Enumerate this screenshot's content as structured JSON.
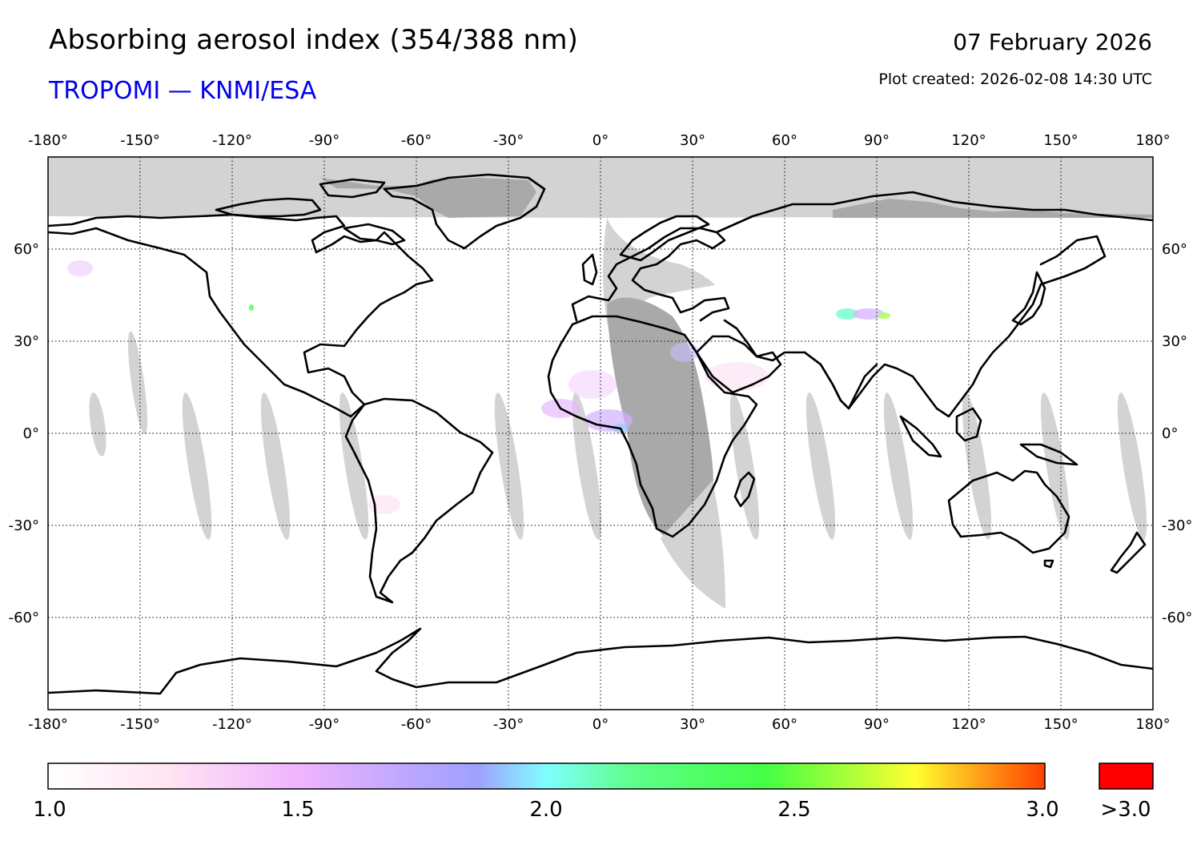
{
  "header": {
    "title": "Absorbing aerosol index (354/388 nm)",
    "subtitle": "TROPOMI — KNMI/ESA",
    "date": "07 February 2026",
    "created": "Plot created: 2026-02-08 14:30 UTC"
  },
  "colors": {
    "subtitle": "#0000ee",
    "no_data": "#d3d3d3",
    "no_data_dark": "#a9a9a9",
    "over_range": "#ff0000",
    "colormap": [
      "#ffffff",
      "#ffd6f0",
      "#e8a6ff",
      "#a0a0ff",
      "#80ffff",
      "#40ff40",
      "#ffff30",
      "#ff4000"
    ]
  },
  "map": {
    "projection": "equirectangular",
    "lon_range": [
      -180,
      180
    ],
    "lat_range": [
      -90,
      90
    ],
    "lon_ticks": [
      "-180°",
      "-150°",
      "-120°",
      "-90°",
      "-60°",
      "-30°",
      "0°",
      "30°",
      "60°",
      "90°",
      "120°",
      "150°",
      "180°"
    ],
    "lat_ticks": [
      "60°",
      "30°",
      "0°",
      "-30°",
      "-60°"
    ],
    "gridlines": "dotted"
  },
  "colorbar": {
    "labels": [
      "1.0",
      "1.5",
      "2.0",
      "2.5",
      "3.0"
    ],
    "overflow_label": ">3.0",
    "range": [
      1.0,
      3.0
    ]
  }
}
